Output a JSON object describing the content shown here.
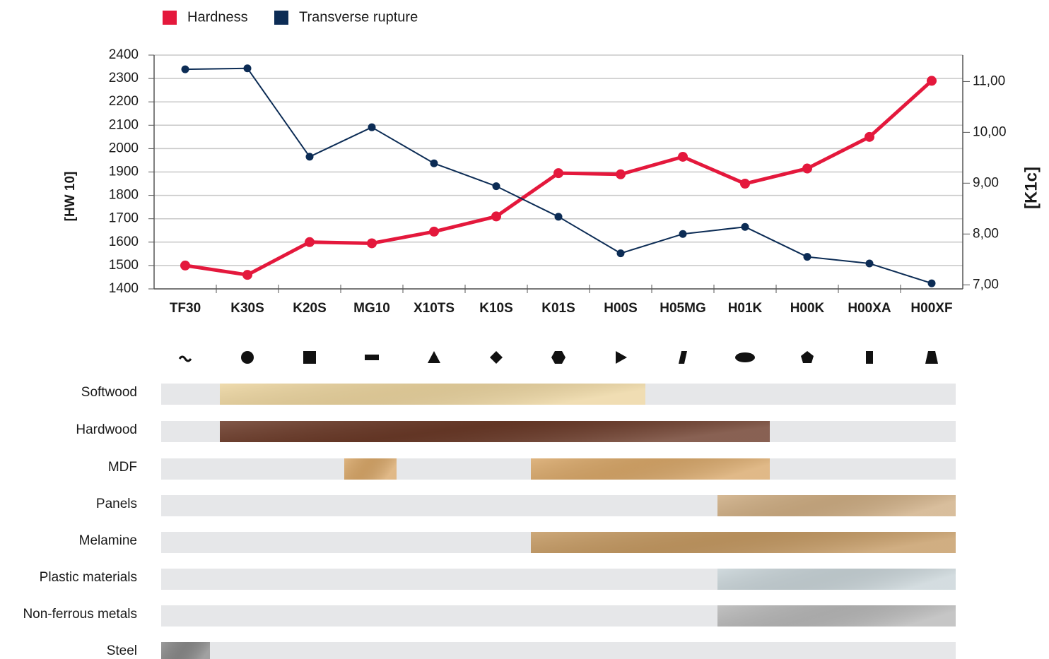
{
  "chart_data": {
    "type": "line",
    "categories": [
      "TF30",
      "K30S",
      "K20S",
      "MG10",
      "X10TS",
      "K10S",
      "K01S",
      "H00S",
      "H05MG",
      "H01K",
      "H00K",
      "H00XA",
      "H00XF"
    ],
    "series": [
      {
        "name": "Hardness",
        "color": "#e4183c",
        "values": [
          1500,
          1460,
          1600,
          1595,
          1645,
          1710,
          1895,
          1890,
          1965,
          1850,
          1915,
          2050,
          2290
        ]
      },
      {
        "name": "Transverse rupture",
        "color": "#0c2c55",
        "axis": "y2",
        "values": [
          11.24,
          11.26,
          9.52,
          10.1,
          9.39,
          8.94,
          8.34,
          7.62,
          8.0,
          8.14,
          7.55,
          7.42,
          7.03
        ]
      }
    ],
    "y_label": "[HW 10]",
    "y2_label": "[K1c]",
    "ylim": [
      1400,
      2400
    ],
    "yticks": [
      1400,
      1500,
      1600,
      1700,
      1800,
      1900,
      2000,
      2100,
      2200,
      2300,
      2400
    ],
    "y2lim": [
      6.92,
      11.52
    ],
    "y2ticks": [
      {
        "value": 7,
        "label": "7,00"
      },
      {
        "value": 8,
        "label": "8,00"
      },
      {
        "value": 9,
        "label": "9,00"
      },
      {
        "value": 10,
        "label": "10,00"
      },
      {
        "value": 11,
        "label": "11,00"
      }
    ],
    "grid": true,
    "legend": "top-left"
  },
  "materials": [
    {
      "name": "Softwood",
      "color": "#ecd5a0",
      "ranges": [
        [
          "K30S",
          "H00S"
        ]
      ]
    },
    {
      "name": "Hardwood",
      "color": "#6b3a28",
      "ranges": [
        [
          "K30S",
          "H01K"
        ]
      ]
    },
    {
      "name": "MDF",
      "color": "#d9a86a",
      "ranges": [
        [
          "MG10",
          "MG10"
        ],
        [
          "K01S",
          "H01K"
        ]
      ]
    },
    {
      "name": "Panels",
      "color": "#cfae84",
      "ranges": [
        [
          "H01K",
          "H00XF"
        ]
      ]
    },
    {
      "name": "Melamine",
      "color": "#c59a63",
      "ranges": [
        [
          "K01S",
          "H00XF"
        ]
      ]
    },
    {
      "name": "Plastic materials",
      "color": "#c9d4d8",
      "ranges": [
        [
          "H01K",
          "H00XF"
        ]
      ]
    },
    {
      "name": "Non-ferrous metals",
      "color": "#b8b8b8",
      "ranges": [
        [
          "H01K",
          "H00XF"
        ]
      ]
    },
    {
      "name": "Steel",
      "color": "#8a8a8a",
      "ranges": [
        [
          "TF30",
          "TF30"
        ]
      ]
    }
  ]
}
